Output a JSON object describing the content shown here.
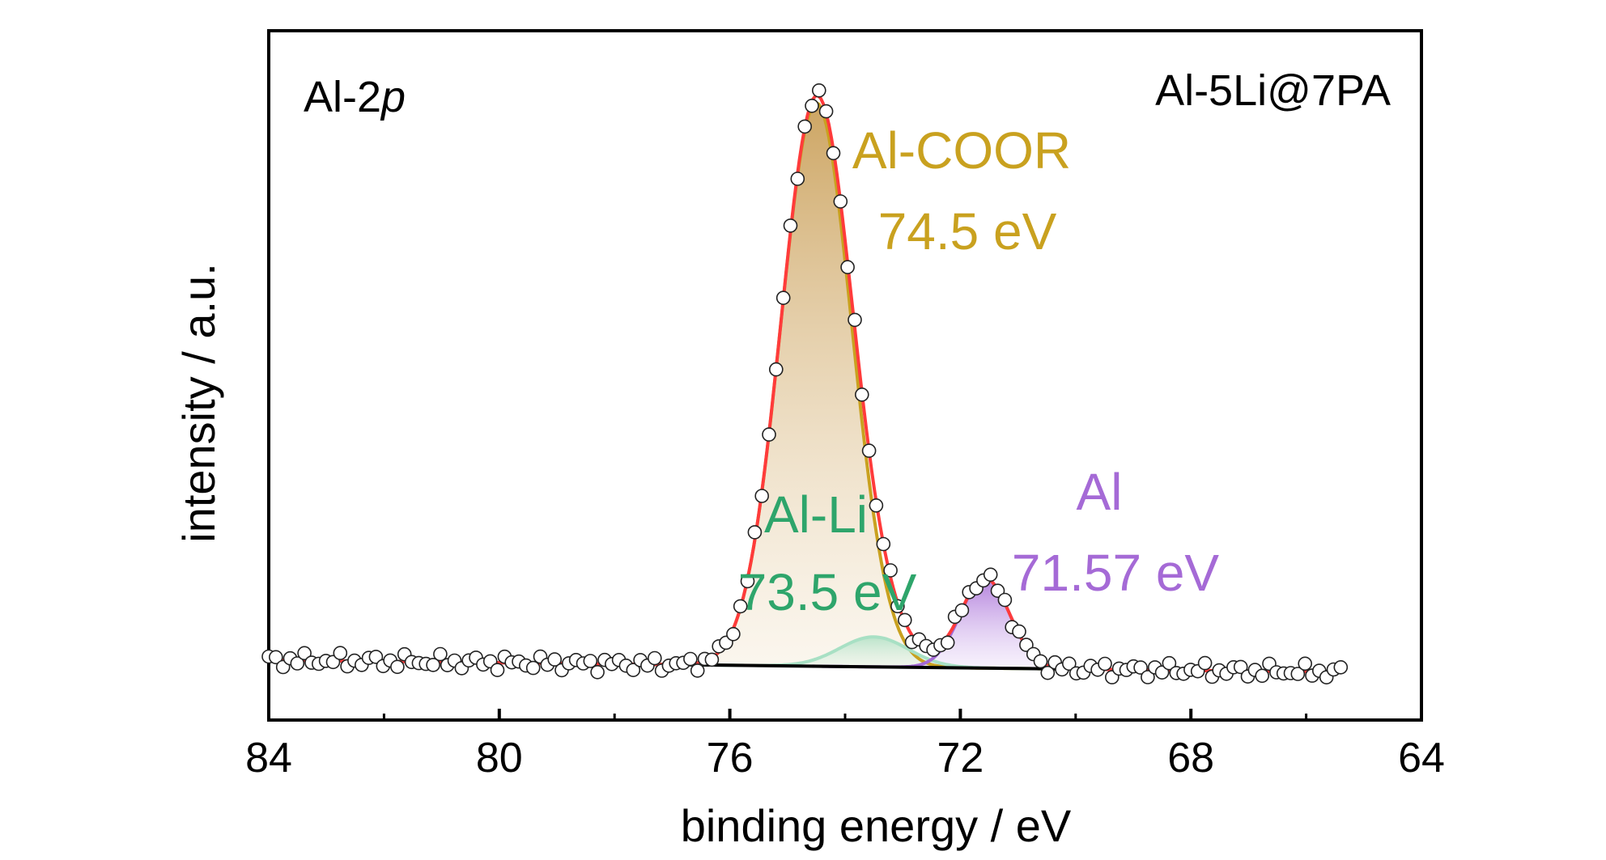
{
  "chart_data": {
    "type": "line",
    "title": "",
    "xlabel": "binding energy / eV",
    "ylabel": "intensity / a.u.",
    "xlim": [
      84,
      64
    ],
    "x_reversed": true,
    "ylim": [
      -0.1,
      1.05
    ],
    "y_ticks_shown": false,
    "grid": false,
    "x_ticks": [
      "84",
      "80",
      "76",
      "72",
      "68",
      "64"
    ],
    "x_tick_values": [
      84,
      80,
      76,
      72,
      68,
      64
    ],
    "corner_labels": {
      "left": {
        "prefix": "Al-2",
        "italic": "p"
      },
      "right": "Al-5Li@7PA"
    },
    "annotations": [
      {
        "label": "Al-COOR",
        "energy": "74.5 eV",
        "color": "#c9a11f"
      },
      {
        "label": "Al-Li",
        "energy": "73.5 eV",
        "color": "#2ea56b"
      },
      {
        "label": "Al",
        "energy": "71.57 eV",
        "color": "#a56ad6"
      }
    ],
    "background": {
      "x": [
        84,
        65.4
      ],
      "y": [
        0.0,
        -0.02
      ],
      "color": "#000000"
    },
    "components": [
      {
        "name": "Al-COOR",
        "center": 74.5,
        "amplitude": 0.94,
        "fwhm": 1.45,
        "color": "#c9a11f",
        "fill": "#d9b06a"
      },
      {
        "name": "Al-Li",
        "center": 73.5,
        "amplitude": 0.05,
        "fwhm": 1.4,
        "color": "#a8e0c4",
        "fill": "#c9efdb"
      },
      {
        "name": "Al",
        "center": 71.57,
        "amplitude": 0.15,
        "fwhm": 1.0,
        "color": "#a56ad6",
        "fill": "#c9a6f0"
      }
    ],
    "envelope_color": "#ff3b3b",
    "raw_data_style": "open circles",
    "x_range_data": [
      84,
      65.4
    ]
  }
}
